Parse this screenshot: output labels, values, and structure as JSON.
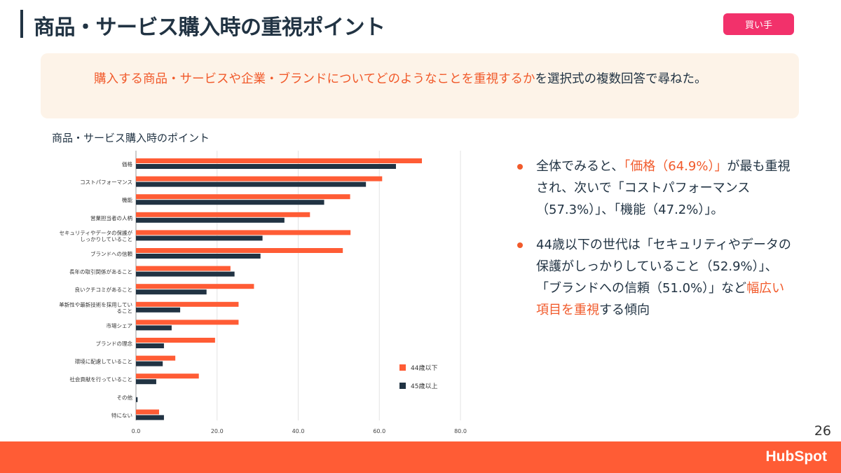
{
  "header": {
    "title": "商品・サービス購入時の重視ポイント",
    "badge": "買い手"
  },
  "intro": {
    "highlight": "購入する商品・サービスや企業・ブランドについてどのようなことを重視するか",
    "rest": "を選択式の複数回答で尋ねた。"
  },
  "bullets": [
    {
      "segments": [
        {
          "t": "全体でみると、"
        },
        {
          "t": "「価格（64.9%）」",
          "hl": true
        },
        {
          "t": "が最も重視され、次いで「コストパフォーマンス（57.3%）」、「機能（47.2%）」。"
        }
      ]
    },
    {
      "segments": [
        {
          "t": "44歳以下の世代は「セキュリティやデータの保護がしっかりしていること（52.9%）」、「ブランドへの信頼（51.0%）」など"
        },
        {
          "t": "幅広い項目を重視",
          "hl": true
        },
        {
          "t": "する傾向"
        }
      ]
    }
  ],
  "footer": {
    "page": "26",
    "logo": "HubSpot"
  },
  "colors": {
    "accent": "#ff5c35",
    "dark": "#213343",
    "badge": "#f2316b"
  },
  "chart_data": {
    "type": "bar",
    "orientation": "horizontal",
    "title": "商品・サービス購入時のポイント",
    "categories": [
      "価格",
      "コストパフォーマンス",
      "機能",
      "営業担当者の人柄",
      "セキュリティやデータの保護がしっかりしていること",
      "ブランドへの信頼",
      "長年の取引関係があること",
      "良いクチコミがあること",
      "革新性や最新技術を採用していること",
      "市場シェア",
      "ブランドの理念",
      "環境に配慮していること",
      "社会貢献を行っていること",
      "その他",
      "特にない"
    ],
    "category_lines": [
      [
        "価格"
      ],
      [
        "コストパフォーマンス"
      ],
      [
        "機能"
      ],
      [
        "営業担当者の人柄"
      ],
      [
        "セキュリティやデータの保護が",
        "しっかりしていること"
      ],
      [
        "ブランドへの信頼"
      ],
      [
        "長年の取引関係があること"
      ],
      [
        "良いクチコミがあること"
      ],
      [
        "革新性や最新技術を採用してい",
        "ること"
      ],
      [
        "市場シェア"
      ],
      [
        "ブランドの理念"
      ],
      [
        "環境に配慮していること"
      ],
      [
        "社会貢献を行っていること"
      ],
      [
        "その他"
      ],
      [
        "特にない"
      ]
    ],
    "series": [
      {
        "name": "44歳以下",
        "color": "#ff5c35",
        "values": [
          70.5,
          60.7,
          52.8,
          42.9,
          52.9,
          51.0,
          23.3,
          29.1,
          25.3,
          25.3,
          19.5,
          9.7,
          15.5,
          0,
          5.7
        ]
      },
      {
        "name": "45歳以上",
        "color": "#213343",
        "values": [
          64.1,
          56.7,
          46.4,
          36.6,
          31.2,
          30.7,
          24.3,
          17.4,
          10.9,
          8.8,
          6.9,
          6.6,
          5.0,
          0.4,
          6.9
        ]
      }
    ],
    "xlim": [
      0,
      80
    ],
    "xticks": [
      "0.0",
      "20.0",
      "40.0",
      "60.0",
      "80.0"
    ],
    "grid": true,
    "legend": "bottom-right"
  }
}
